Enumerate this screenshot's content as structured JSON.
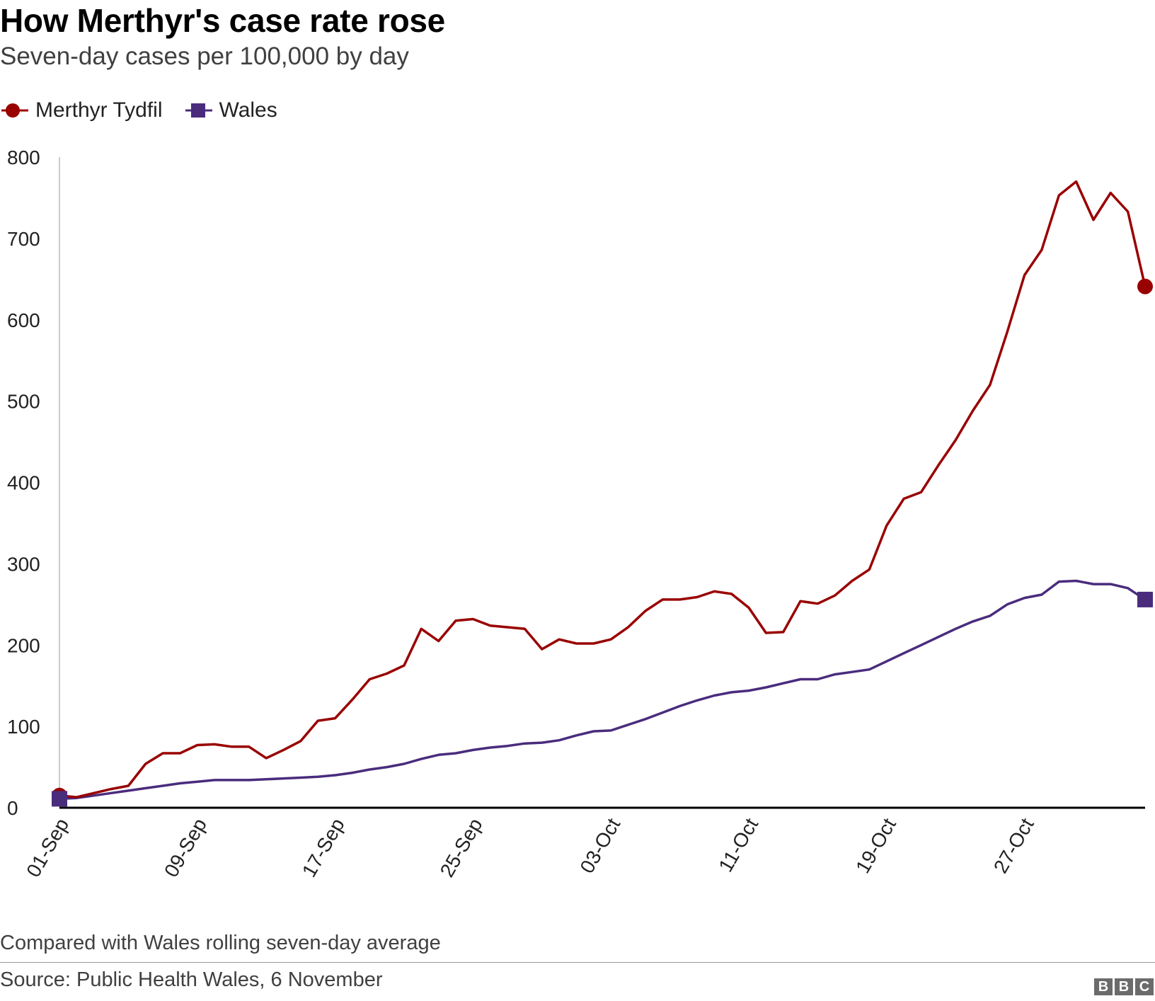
{
  "header": {
    "title": "How Merthyr's case rate rose",
    "subtitle": "Seven-day cases per 100,000 by day"
  },
  "legend": {
    "items": [
      {
        "label": "Merthyr Tydfil",
        "color": "#990000",
        "marker": "circle-icon"
      },
      {
        "label": "Wales",
        "color": "#4a2c7d",
        "marker": "square-icon"
      }
    ]
  },
  "footer": {
    "note": "Compared with Wales rolling seven-day average",
    "source": "Source: Public Health Wales, 6 November",
    "logo_letters": [
      "B",
      "B",
      "C"
    ]
  },
  "chart_data": {
    "type": "line",
    "title": "How Merthyr's case rate rose",
    "subtitle": "Seven-day cases per 100,000 by day",
    "xlabel": "",
    "ylabel": "",
    "ylim": [
      0,
      800
    ],
    "yticks": [
      0,
      100,
      200,
      300,
      400,
      500,
      600,
      700,
      800
    ],
    "grid": false,
    "legend_position": "top-left",
    "x": [
      "01-Sep",
      "02-Sep",
      "03-Sep",
      "04-Sep",
      "05-Sep",
      "06-Sep",
      "07-Sep",
      "08-Sep",
      "09-Sep",
      "10-Sep",
      "11-Sep",
      "12-Sep",
      "13-Sep",
      "14-Sep",
      "15-Sep",
      "16-Sep",
      "17-Sep",
      "18-Sep",
      "19-Sep",
      "20-Sep",
      "21-Sep",
      "22-Sep",
      "23-Sep",
      "24-Sep",
      "25-Sep",
      "26-Sep",
      "27-Sep",
      "28-Sep",
      "29-Sep",
      "30-Sep",
      "01-Oct",
      "02-Oct",
      "03-Oct",
      "04-Oct",
      "05-Oct",
      "06-Oct",
      "07-Oct",
      "08-Oct",
      "09-Oct",
      "10-Oct",
      "11-Oct",
      "12-Oct",
      "13-Oct",
      "14-Oct",
      "15-Oct",
      "16-Oct",
      "17-Oct",
      "18-Oct",
      "19-Oct",
      "20-Oct",
      "21-Oct",
      "22-Oct",
      "23-Oct",
      "24-Oct",
      "25-Oct",
      "26-Oct",
      "27-Oct",
      "28-Oct",
      "29-Oct",
      "30-Oct",
      "31-Oct",
      "01-Nov",
      "02-Nov",
      "03-Nov"
    ],
    "tick_labels": [
      "01-Sep",
      "09-Sep",
      "17-Sep",
      "25-Sep",
      "03-Oct",
      "11-Oct",
      "19-Oct",
      "27-Oct"
    ],
    "tick_indices": [
      0,
      8,
      16,
      24,
      32,
      40,
      48,
      56
    ],
    "series": [
      {
        "name": "Merthyr Tydfil",
        "color": "#990000",
        "marker": "circle",
        "values": [
          15,
          13,
          18,
          23,
          27,
          54,
          67,
          67,
          77,
          78,
          75,
          75,
          61,
          71,
          82,
          107,
          110,
          133,
          158,
          165,
          175,
          220,
          205,
          230,
          232,
          224,
          222,
          220,
          195,
          207,
          202,
          202,
          207,
          222,
          242,
          256,
          256,
          259,
          266,
          263,
          246,
          215,
          216,
          254,
          251,
          261,
          279,
          293,
          347,
          380,
          388,
          421,
          452,
          488,
          520,
          585,
          655,
          686,
          753,
          770,
          723,
          756,
          733,
          641
        ]
      },
      {
        "name": "Wales",
        "color": "#4a2c7d",
        "marker": "square",
        "values": [
          11,
          12,
          15,
          18,
          21,
          24,
          27,
          30,
          32,
          34,
          34,
          34,
          35,
          36,
          37,
          38,
          40,
          43,
          47,
          50,
          54,
          60,
          65,
          67,
          71,
          74,
          76,
          79,
          80,
          83,
          89,
          94,
          95,
          102,
          109,
          117,
          125,
          132,
          138,
          142,
          144,
          148,
          153,
          158,
          158,
          164,
          167,
          170,
          180,
          190,
          200,
          210,
          220,
          229,
          236,
          250,
          258,
          262,
          278,
          279,
          275,
          275,
          270,
          256
        ]
      }
    ]
  }
}
